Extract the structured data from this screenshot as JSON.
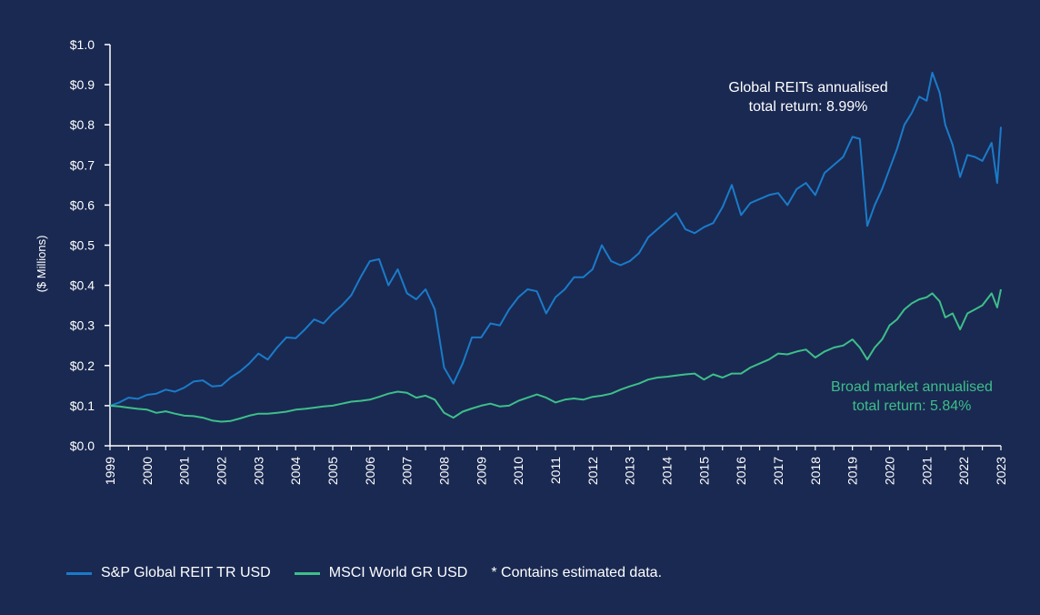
{
  "chart_data": {
    "type": "line",
    "title": "",
    "xlabel": "",
    "ylabel": "($ Millions)",
    "ylim": [
      0,
      1.0
    ],
    "xlim": [
      1999,
      2023
    ],
    "grid": false,
    "y_ticks": [
      "$0.0",
      "$0.1",
      "$0.2",
      "$0.3",
      "$0.4",
      "$0.5",
      "$0.6",
      "$0.7",
      "$0.8",
      "$0.9",
      "$1.0"
    ],
    "y_tick_values": [
      0,
      0.1,
      0.2,
      0.3,
      0.4,
      0.5,
      0.6,
      0.7,
      0.8,
      0.9,
      1.0
    ],
    "x_ticks": [
      "1999",
      "2000",
      "2001",
      "2002",
      "2003",
      "2004",
      "2005",
      "2006",
      "2007",
      "2008",
      "2009",
      "2010",
      "2011",
      "2012",
      "2013",
      "2014",
      "2015",
      "2016",
      "2017",
      "2018",
      "2019",
      "2020",
      "2021",
      "2022",
      "2023"
    ],
    "legend_position": "bottom-left",
    "series": [
      {
        "name": "S&P Global REIT TR USD",
        "color": "#1a7bc9",
        "x": [
          1999.0,
          1999.25,
          1999.5,
          1999.75,
          2000.0,
          2000.25,
          2000.5,
          2000.75,
          2001.0,
          2001.25,
          2001.5,
          2001.75,
          2002.0,
          2002.25,
          2002.5,
          2002.75,
          2003.0,
          2003.25,
          2003.5,
          2003.75,
          2004.0,
          2004.25,
          2004.5,
          2004.75,
          2005.0,
          2005.25,
          2005.5,
          2005.75,
          2006.0,
          2006.25,
          2006.5,
          2006.75,
          2007.0,
          2007.25,
          2007.5,
          2007.75,
          2008.0,
          2008.25,
          2008.5,
          2008.75,
          2009.0,
          2009.25,
          2009.5,
          2009.75,
          2010.0,
          2010.25,
          2010.5,
          2010.75,
          2011.0,
          2011.25,
          2011.5,
          2011.75,
          2012.0,
          2012.25,
          2012.5,
          2012.75,
          2013.0,
          2013.25,
          2013.5,
          2013.75,
          2014.0,
          2014.25,
          2014.5,
          2014.75,
          2015.0,
          2015.25,
          2015.5,
          2015.75,
          2016.0,
          2016.25,
          2016.5,
          2016.75,
          2017.0,
          2017.25,
          2017.5,
          2017.75,
          2018.0,
          2018.25,
          2018.5,
          2018.75,
          2019.0,
          2019.2,
          2019.4,
          2019.6,
          2019.8,
          2020.0,
          2020.2,
          2020.4,
          2020.6,
          2020.8,
          2021.0,
          2021.15,
          2021.35,
          2021.5,
          2021.7,
          2021.9,
          2022.1,
          2022.3,
          2022.5,
          2022.75,
          2022.9,
          2023.0
        ],
        "values": [
          0.1,
          0.108,
          0.12,
          0.117,
          0.127,
          0.13,
          0.14,
          0.135,
          0.145,
          0.16,
          0.163,
          0.148,
          0.15,
          0.17,
          0.185,
          0.205,
          0.23,
          0.215,
          0.245,
          0.27,
          0.268,
          0.29,
          0.315,
          0.305,
          0.33,
          0.35,
          0.375,
          0.42,
          0.46,
          0.465,
          0.4,
          0.44,
          0.38,
          0.365,
          0.39,
          0.34,
          0.195,
          0.155,
          0.205,
          0.27,
          0.27,
          0.305,
          0.3,
          0.34,
          0.37,
          0.39,
          0.385,
          0.33,
          0.37,
          0.39,
          0.42,
          0.42,
          0.44,
          0.5,
          0.46,
          0.45,
          0.46,
          0.48,
          0.52,
          0.54,
          0.56,
          0.58,
          0.54,
          0.53,
          0.545,
          0.555,
          0.595,
          0.65,
          0.575,
          0.605,
          0.615,
          0.625,
          0.63,
          0.6,
          0.64,
          0.655,
          0.625,
          0.68,
          0.7,
          0.72,
          0.77,
          0.765,
          0.548,
          0.6,
          0.64,
          0.69,
          0.74,
          0.8,
          0.83,
          0.87,
          0.86,
          0.93,
          0.88,
          0.8,
          0.75,
          0.67,
          0.725,
          0.72,
          0.71,
          0.755,
          0.655,
          0.795
        ]
      },
      {
        "name": "MSCI World GR USD",
        "color": "#3dbf8a",
        "x": [
          1999.0,
          1999.25,
          1999.5,
          1999.75,
          2000.0,
          2000.25,
          2000.5,
          2000.75,
          2001.0,
          2001.25,
          2001.5,
          2001.75,
          2002.0,
          2002.25,
          2002.5,
          2002.75,
          2003.0,
          2003.25,
          2003.5,
          2003.75,
          2004.0,
          2004.25,
          2004.5,
          2004.75,
          2005.0,
          2005.25,
          2005.5,
          2005.75,
          2006.0,
          2006.25,
          2006.5,
          2006.75,
          2007.0,
          2007.25,
          2007.5,
          2007.75,
          2008.0,
          2008.25,
          2008.5,
          2008.75,
          2009.0,
          2009.25,
          2009.5,
          2009.75,
          2010.0,
          2010.25,
          2010.5,
          2010.75,
          2011.0,
          2011.25,
          2011.5,
          2011.75,
          2012.0,
          2012.25,
          2012.5,
          2012.75,
          2013.0,
          2013.25,
          2013.5,
          2013.75,
          2014.0,
          2014.25,
          2014.5,
          2014.75,
          2015.0,
          2015.25,
          2015.5,
          2015.75,
          2016.0,
          2016.25,
          2016.5,
          2016.75,
          2017.0,
          2017.25,
          2017.5,
          2017.75,
          2018.0,
          2018.25,
          2018.5,
          2018.75,
          2019.0,
          2019.2,
          2019.4,
          2019.6,
          2019.8,
          2020.0,
          2020.2,
          2020.4,
          2020.6,
          2020.8,
          2021.0,
          2021.15,
          2021.35,
          2021.5,
          2021.7,
          2021.9,
          2022.1,
          2022.3,
          2022.5,
          2022.75,
          2022.9,
          2023.0
        ],
        "values": [
          0.1,
          0.098,
          0.095,
          0.092,
          0.09,
          0.082,
          0.086,
          0.08,
          0.075,
          0.074,
          0.07,
          0.063,
          0.06,
          0.062,
          0.068,
          0.075,
          0.08,
          0.08,
          0.082,
          0.085,
          0.09,
          0.092,
          0.095,
          0.098,
          0.1,
          0.105,
          0.11,
          0.112,
          0.115,
          0.122,
          0.13,
          0.135,
          0.132,
          0.12,
          0.125,
          0.115,
          0.082,
          0.07,
          0.085,
          0.093,
          0.1,
          0.105,
          0.098,
          0.1,
          0.112,
          0.12,
          0.128,
          0.12,
          0.108,
          0.115,
          0.118,
          0.115,
          0.122,
          0.125,
          0.13,
          0.14,
          0.148,
          0.155,
          0.165,
          0.17,
          0.172,
          0.175,
          0.178,
          0.18,
          0.165,
          0.178,
          0.17,
          0.18,
          0.18,
          0.195,
          0.205,
          0.215,
          0.23,
          0.228,
          0.235,
          0.24,
          0.22,
          0.235,
          0.245,
          0.25,
          0.265,
          0.245,
          0.215,
          0.245,
          0.265,
          0.3,
          0.315,
          0.34,
          0.355,
          0.365,
          0.37,
          0.38,
          0.36,
          0.32,
          0.33,
          0.29,
          0.33,
          0.34,
          0.35,
          0.38,
          0.345,
          0.39
        ]
      }
    ],
    "annotations": [
      {
        "lines": [
          "Global REITs annualised",
          "total return: 8.99%"
        ],
        "color": "#ffffff",
        "series": "S&P Global REIT TR USD"
      },
      {
        "lines": [
          "Broad market annualised",
          "total return: 5.84%"
        ],
        "color": "#3dbf8a",
        "series": "MSCI World GR USD"
      }
    ]
  },
  "legend": {
    "items": [
      {
        "label": "S&P Global REIT TR USD",
        "color": "#1a7bc9"
      },
      {
        "label": "MSCI World GR USD",
        "color": "#3dbf8a"
      }
    ],
    "note": "* Contains estimated data."
  }
}
